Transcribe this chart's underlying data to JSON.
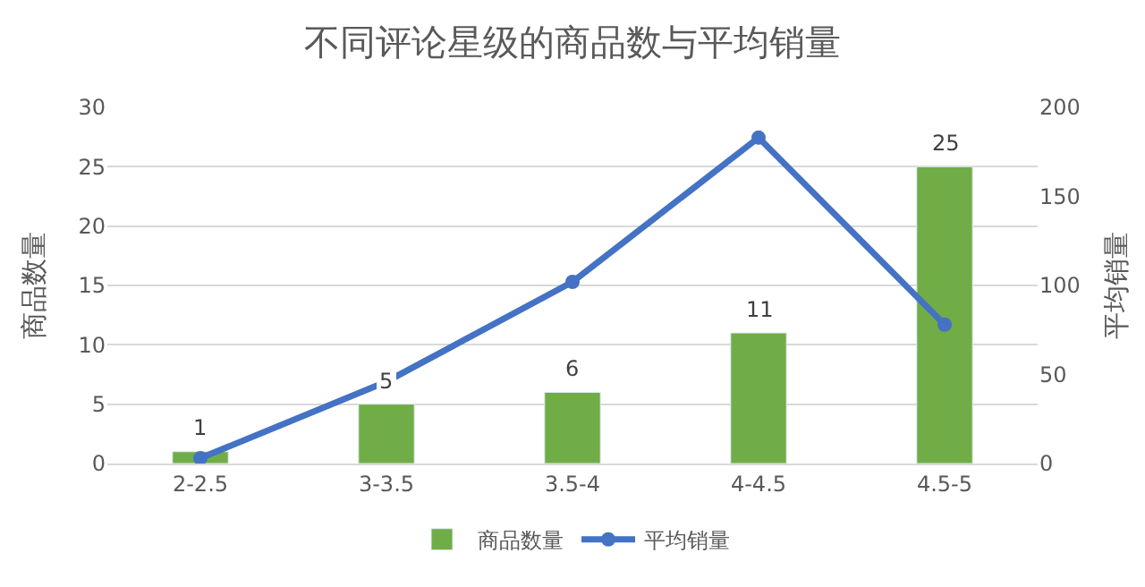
{
  "chart_data": {
    "type": "bar",
    "title": "不同评论星级的商品数与平均销量",
    "ylabel": "商品数量",
    "y2label": "平均销量",
    "categories": [
      "2-2.5",
      "3-3.5",
      "3.5-4",
      "4-4.5",
      "4.5-5"
    ],
    "series": [
      {
        "name": "商品数量",
        "color": "#70ad47",
        "values": [
          1,
          5,
          6,
          11,
          25
        ],
        "value_labels": [
          "1",
          "5",
          "6",
          "11",
          "25"
        ]
      },
      {
        "name": "平均销量",
        "type": "line",
        "axis": "y2",
        "color": "#4472c4",
        "marker": "circle",
        "values": [
          3,
          46,
          102,
          183,
          78
        ]
      }
    ],
    "ylim": [
      0,
      30
    ],
    "yticks": [
      0,
      5,
      10,
      15,
      20,
      25,
      30
    ],
    "y2lim": [
      0,
      200
    ],
    "y2ticks": [
      0,
      50,
      100,
      150,
      200
    ],
    "grid": "y",
    "legend": "bottom"
  }
}
